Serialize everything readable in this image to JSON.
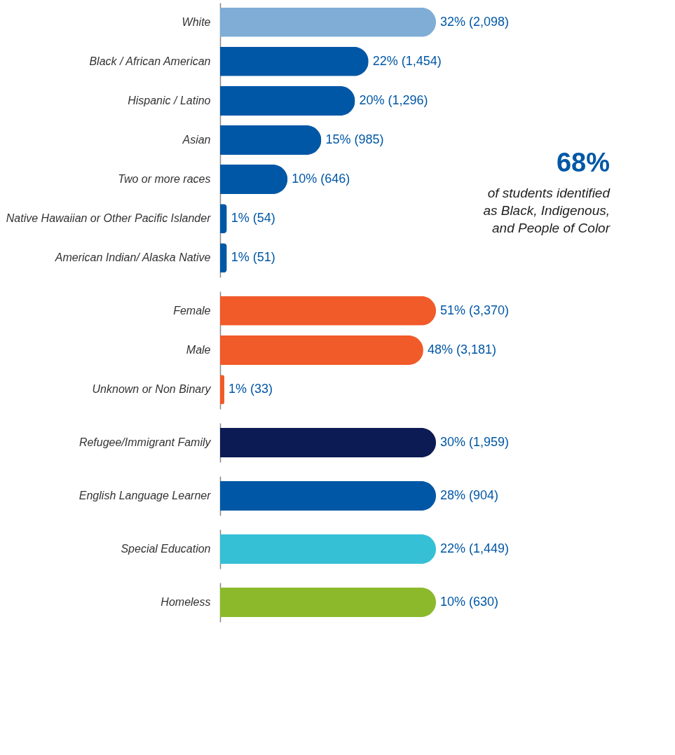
{
  "chart_data": [
    {
      "type": "bar",
      "orientation": "horizontal",
      "tick_labels": "y",
      "categories": [
        "White",
        "Black / African American",
        "Hispanic / Latino",
        "Asian",
        "Two or more races",
        "Native Hawaiian or Other Pacific Islander",
        "American Indian/ Alaska Native"
      ],
      "values": [
        32,
        22,
        20,
        15,
        10,
        1,
        1
      ],
      "colors": [
        "#7fadd6",
        "#0057a6",
        "#0057a6",
        "#0057a6",
        "#0057a6",
        "#0057a6",
        "#0057a6"
      ],
      "value_labels": [
        "32% (2,098)",
        "22% (1,454)",
        "20% (1,296)",
        "15% (985)",
        "10% (646)",
        "1% (54)",
        "1% (51)"
      ],
      "annotations": [
        "68%",
        "of students identified as Black, Indigenous, and People of Color"
      ]
    },
    {
      "type": "bar",
      "orientation": "horizontal",
      "tick_labels": "y",
      "categories": [
        "Female",
        "Male",
        "Unknown or Non Binary"
      ],
      "values": [
        51,
        48,
        1
      ],
      "colors": [
        "#f15a29",
        "#f15a29",
        "#f15a29"
      ],
      "value_labels": [
        "51% (3,370)",
        "48% (3,181)",
        "1% (33)"
      ]
    },
    {
      "type": "bar",
      "orientation": "horizontal",
      "tick_labels": "y",
      "categories": [
        "Refugee/Immigrant Family"
      ],
      "values": [
        30
      ],
      "colors": [
        "#0d1b54"
      ],
      "value_labels": [
        "30% (1,959)"
      ]
    },
    {
      "type": "bar",
      "orientation": "horizontal",
      "tick_labels": "y",
      "categories": [
        "English Language Learner"
      ],
      "values": [
        28
      ],
      "colors": [
        "#0057a6"
      ],
      "value_labels": [
        "28% (904)"
      ]
    },
    {
      "type": "bar",
      "orientation": "horizontal",
      "tick_labels": "y",
      "categories": [
        "Special Education"
      ],
      "values": [
        22
      ],
      "colors": [
        "#36c0d6"
      ],
      "value_labels": [
        "22% (1,449)"
      ]
    },
    {
      "type": "bar",
      "orientation": "horizontal",
      "tick_labels": "y",
      "categories": [
        "Homeless"
      ],
      "values": [
        10
      ],
      "colors": [
        "#8cb92b"
      ],
      "value_labels": [
        "10% (630)"
      ]
    }
  ]
}
